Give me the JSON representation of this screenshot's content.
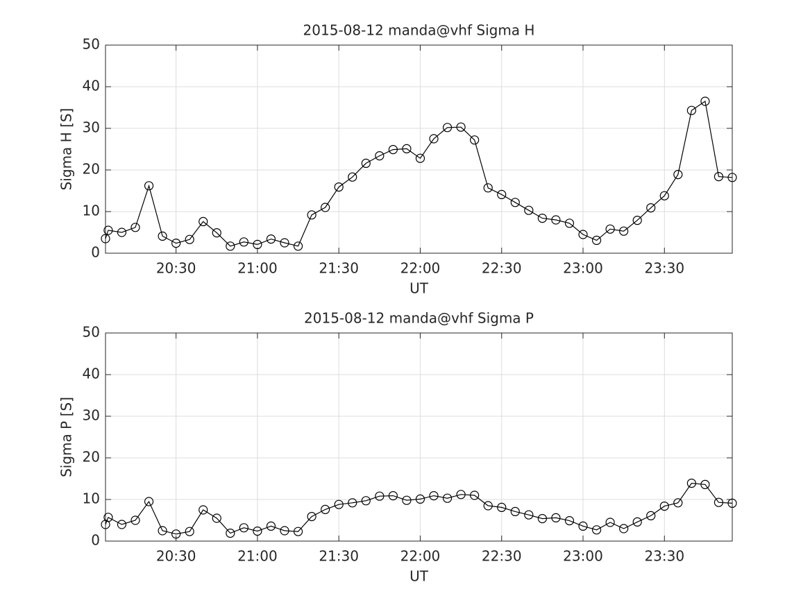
{
  "chart_data": [
    {
      "type": "line",
      "title": "2015-08-12  manda@vhf Sigma H",
      "xlabel": "UT",
      "ylabel": "Sigma H [S]",
      "color": "#000000",
      "marker": "circle",
      "grid": true,
      "x": [
        "20:04",
        "20:05",
        "20:10",
        "20:15",
        "20:20",
        "20:25",
        "20:30",
        "20:35",
        "20:40",
        "20:45",
        "20:50",
        "20:55",
        "21:00",
        "21:05",
        "21:10",
        "21:15",
        "21:20",
        "21:25",
        "21:30",
        "21:35",
        "21:40",
        "21:45",
        "21:50",
        "21:55",
        "22:00",
        "22:05",
        "22:10",
        "22:15",
        "22:20",
        "22:25",
        "22:30",
        "22:35",
        "22:40",
        "22:45",
        "22:50",
        "22:55",
        "23:00",
        "23:05",
        "23:10",
        "23:15",
        "23:20",
        "23:25",
        "23:30",
        "23:35",
        "23:40",
        "23:45",
        "23:50",
        "23:55"
      ],
      "values": [
        3.5,
        5.5,
        5.0,
        6.2,
        16.2,
        4.1,
        2.4,
        3.3,
        7.6,
        4.9,
        1.7,
        2.7,
        2.1,
        3.4,
        2.5,
        1.7,
        9.2,
        11.0,
        15.9,
        18.3,
        21.6,
        23.4,
        24.9,
        25.1,
        22.8,
        27.5,
        30.2,
        30.3,
        27.2,
        15.7,
        14.1,
        12.2,
        10.3,
        8.4,
        8.0,
        7.2,
        4.5,
        3.1,
        5.8,
        5.3,
        7.9,
        10.9,
        13.8,
        18.9,
        34.3,
        36.5,
        18.4,
        18.2
      ],
      "xlim": [
        "20:04",
        "23:55"
      ],
      "xticks": [
        "20:30",
        "21:00",
        "21:30",
        "22:00",
        "22:30",
        "23:00",
        "23:30"
      ],
      "ylim": [
        0,
        50
      ],
      "yticks": [
        0,
        10,
        20,
        30,
        40,
        50
      ]
    },
    {
      "type": "line",
      "title": "2015-08-12  manda@vhf Sigma P",
      "xlabel": "UT",
      "ylabel": "Sigma P [S]",
      "color": "#000000",
      "marker": "circle",
      "grid": true,
      "x": [
        "20:04",
        "20:05",
        "20:10",
        "20:15",
        "20:20",
        "20:25",
        "20:30",
        "20:35",
        "20:40",
        "20:45",
        "20:50",
        "20:55",
        "21:00",
        "21:05",
        "21:10",
        "21:15",
        "21:20",
        "21:25",
        "21:30",
        "21:35",
        "21:40",
        "21:45",
        "21:50",
        "21:55",
        "22:00",
        "22:05",
        "22:10",
        "22:15",
        "22:20",
        "22:25",
        "22:30",
        "22:35",
        "22:40",
        "22:45",
        "22:50",
        "22:55",
        "23:00",
        "23:05",
        "23:10",
        "23:15",
        "23:20",
        "23:25",
        "23:30",
        "23:35",
        "23:40",
        "23:45",
        "23:50",
        "23:55"
      ],
      "values": [
        4.0,
        5.7,
        4.0,
        5.0,
        9.5,
        2.5,
        1.7,
        2.3,
        7.5,
        5.5,
        1.9,
        3.2,
        2.4,
        3.6,
        2.5,
        2.3,
        5.9,
        7.6,
        8.8,
        9.2,
        9.7,
        10.8,
        10.9,
        9.8,
        10.1,
        10.9,
        10.3,
        11.2,
        11.0,
        8.5,
        8.1,
        7.1,
        6.3,
        5.4,
        5.6,
        4.9,
        3.6,
        2.7,
        4.5,
        3.0,
        4.6,
        6.1,
        8.4,
        9.2,
        13.9,
        13.6,
        9.3,
        9.1
      ],
      "xlim": [
        "20:04",
        "23:55"
      ],
      "xticks": [
        "20:30",
        "21:00",
        "21:30",
        "22:00",
        "22:30",
        "23:00",
        "23:30"
      ],
      "ylim": [
        0,
        50
      ],
      "yticks": [
        0,
        10,
        20,
        30,
        40,
        50
      ]
    }
  ]
}
